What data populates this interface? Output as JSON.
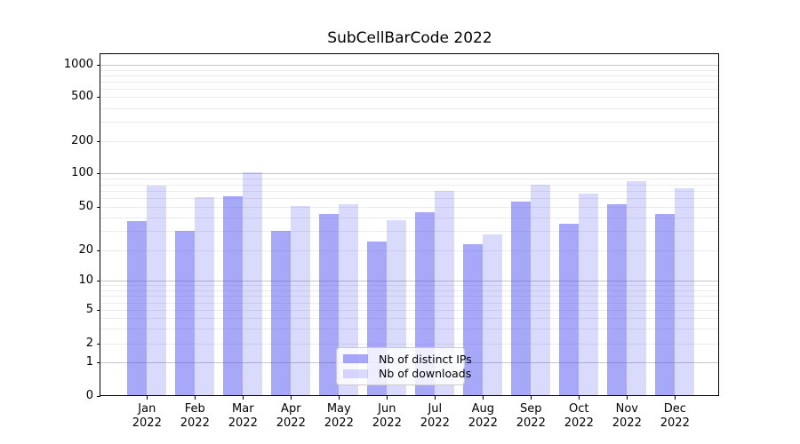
{
  "chart_data": {
    "type": "bar",
    "title": "SubCellBarCode 2022",
    "x_tick_months": [
      "Jan",
      "Feb",
      "Mar",
      "Apr",
      "May",
      "Jun",
      "Jul",
      "Aug",
      "Sep",
      "Oct",
      "Nov",
      "Dec"
    ],
    "x_tick_year": "2022",
    "series": [
      {
        "name": "Nb of distinct IPs",
        "color_hex_on_white": "#a8a8f8",
        "values": [
          37,
          30,
          63,
          30,
          43,
          24,
          45,
          23,
          56,
          35,
          53,
          43
        ]
      },
      {
        "name": "Nb of downloads",
        "color_hex_on_white": "#dadafc",
        "values": [
          78,
          62,
          102,
          51,
          53,
          38,
          70,
          28,
          79,
          66,
          85,
          74
        ]
      }
    ],
    "ylabel": "",
    "xlabel": "",
    "yscale": "symlog-like",
    "yticks": [
      0,
      1,
      2,
      5,
      10,
      20,
      50,
      100,
      200,
      500,
      1000
    ],
    "ylim": [
      0,
      1260
    ],
    "grid": "horizontal major and minor gridlines",
    "legend_position": "lower center"
  }
}
